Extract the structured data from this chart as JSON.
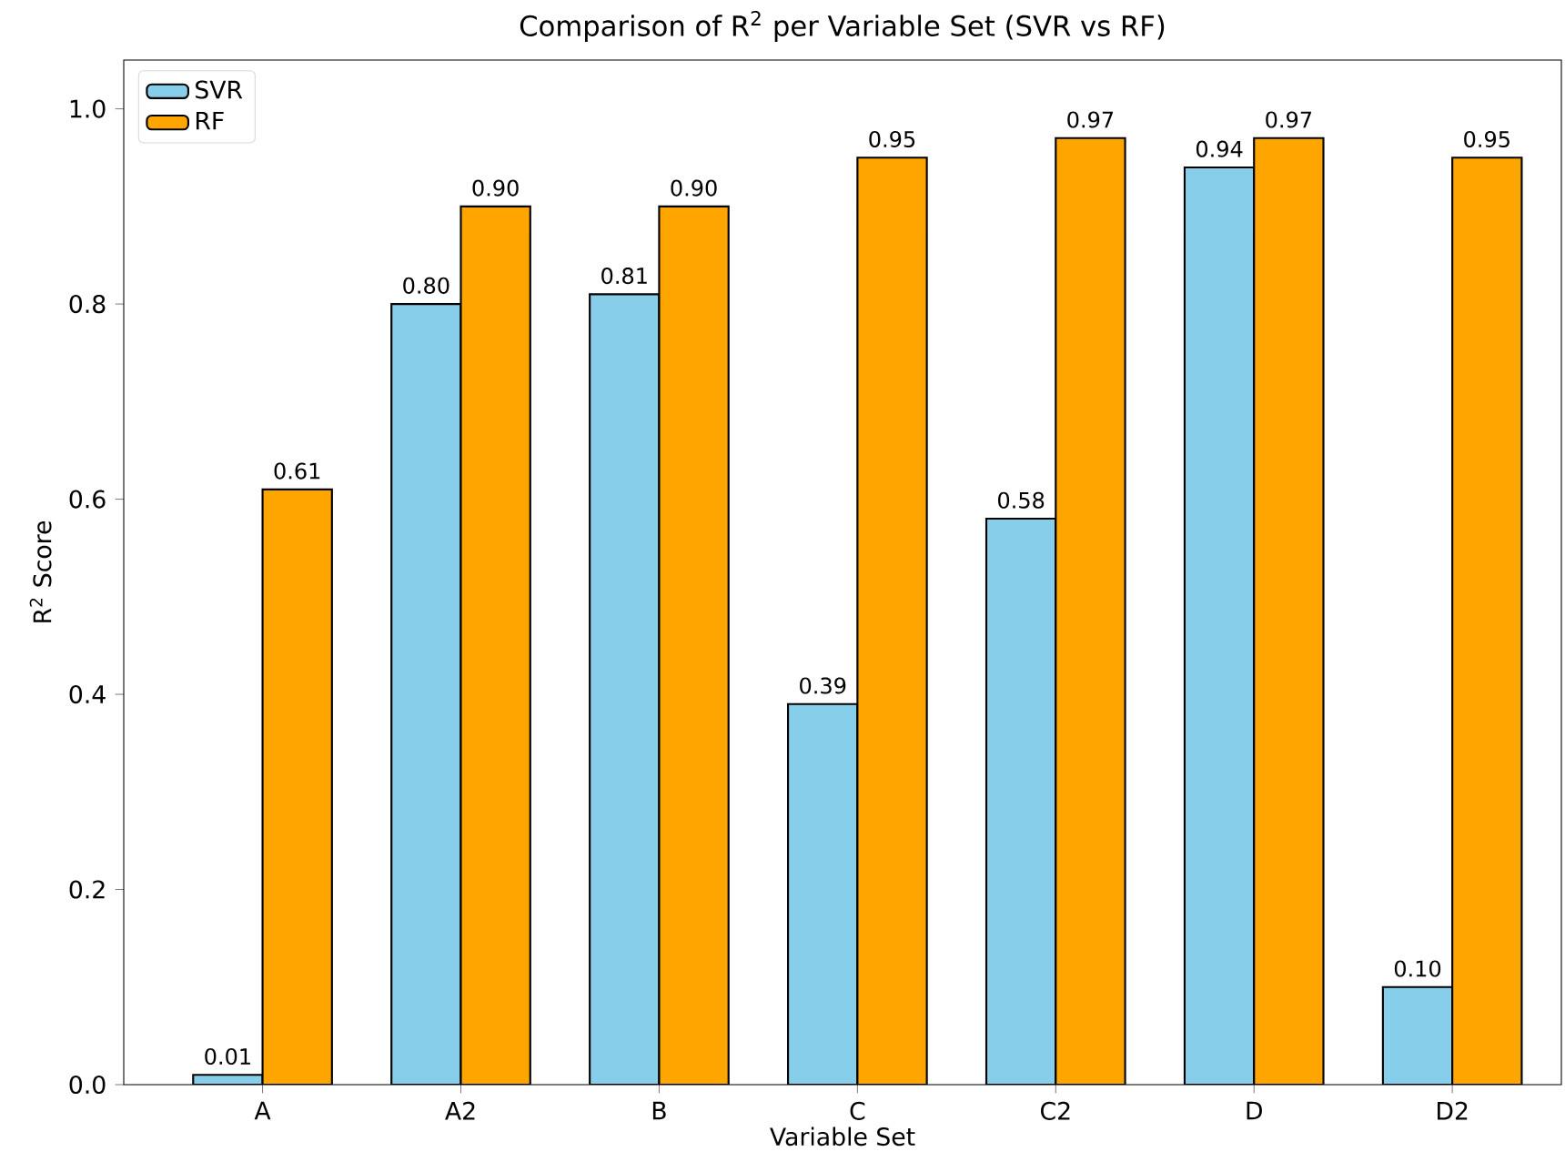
{
  "chart_data": {
    "type": "bar",
    "title": "Comparison of R$^{2}$ per Variable Set (SVR vs RF)",
    "xlabel": "Variable Set",
    "ylabel": "R$^{2}$ Score",
    "categories": [
      "A",
      "A2",
      "B",
      "C",
      "C2",
      "D",
      "D2"
    ],
    "series": [
      {
        "name": "SVR",
        "color": "#87ceeb",
        "values": [
          0.01,
          0.8,
          0.81,
          0.39,
          0.58,
          0.94,
          0.1
        ],
        "value_labels": [
          "0.01",
          "0.80",
          "0.81",
          "0.39",
          "0.58",
          "0.94",
          "0.10"
        ]
      },
      {
        "name": "RF",
        "color": "#ffa500",
        "values": [
          0.61,
          0.9,
          0.9,
          0.95,
          0.97,
          0.97,
          0.95
        ],
        "value_labels": [
          "0.61",
          "0.90",
          "0.90",
          "0.95",
          "0.97",
          "0.97",
          "0.95"
        ]
      }
    ],
    "ylim": [
      0,
      1.05
    ],
    "yticks": [
      {
        "value": 0,
        "label": "0.0"
      },
      {
        "value": 0.2,
        "label": "0.2"
      },
      {
        "value": 0.4,
        "label": "0.4"
      },
      {
        "value": 0.6,
        "label": "0.6"
      },
      {
        "value": 0.8,
        "label": "0.8"
      },
      {
        "value": 1.0,
        "label": "1.0"
      }
    ],
    "legend": "top left",
    "grid": false
  }
}
